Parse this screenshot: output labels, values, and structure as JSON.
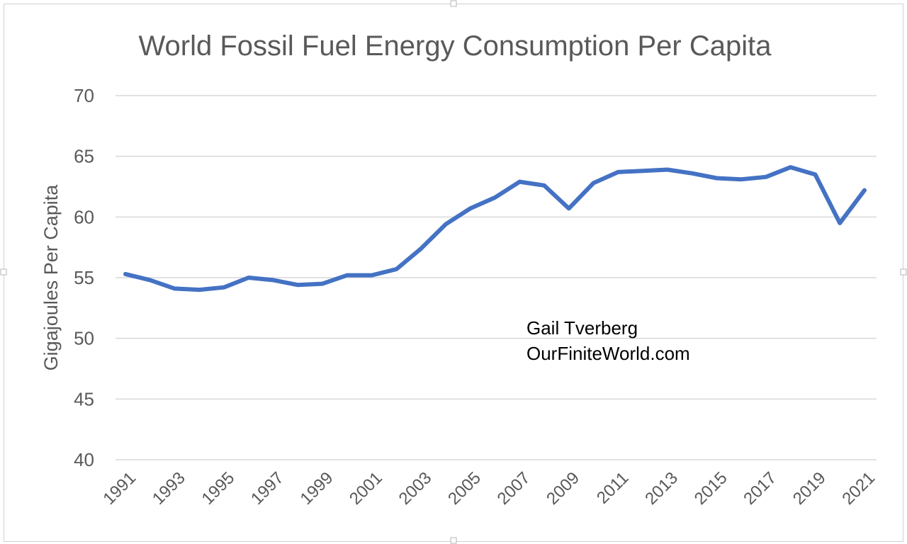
{
  "chart_data": {
    "type": "line",
    "title": "World Fossil Fuel Energy Consumption Per Capita",
    "xlabel": "",
    "ylabel": "Gigajoules Per Capita",
    "ylim": [
      40,
      70
    ],
    "yticks": [
      40,
      45,
      50,
      55,
      60,
      65,
      70
    ],
    "grid": true,
    "x": [
      1991,
      1992,
      1993,
      1994,
      1995,
      1996,
      1997,
      1998,
      1999,
      2000,
      2001,
      2002,
      2003,
      2004,
      2005,
      2006,
      2007,
      2008,
      2009,
      2010,
      2011,
      2012,
      2013,
      2014,
      2015,
      2016,
      2017,
      2018,
      2019,
      2020,
      2021
    ],
    "xtick_labels": [
      "1991",
      "1993",
      "1995",
      "1997",
      "1999",
      "2001",
      "2003",
      "2005",
      "2007",
      "2009",
      "2011",
      "2013",
      "2015",
      "2017",
      "2019",
      "2021"
    ],
    "series": [
      {
        "name": "World Fossil Fuel Energy Consumption Per Capita",
        "color": "#4472C4",
        "values": [
          55.3,
          54.8,
          54.1,
          54.0,
          54.2,
          55.0,
          54.8,
          54.4,
          54.5,
          55.2,
          55.2,
          55.7,
          57.4,
          59.4,
          60.7,
          61.6,
          62.9,
          62.6,
          60.7,
          62.8,
          63.7,
          63.8,
          63.9,
          63.6,
          63.2,
          63.1,
          63.3,
          64.1,
          63.5,
          59.5,
          62.2
        ]
      }
    ],
    "annotations": [
      "Gail Tverberg",
      "OurFiniteWorld.com"
    ]
  }
}
